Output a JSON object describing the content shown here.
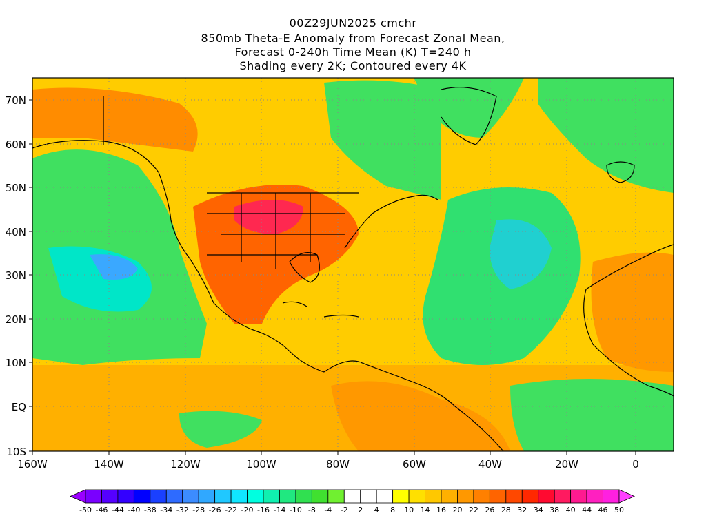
{
  "titles": [
    "00Z29JUN2025 cmchr",
    "850mb Theta-E Anomaly from Forecast Zonal Mean,",
    "Forecast 0-240h Time Mean (K) T=240 h",
    "Shading every 2K; Contoured every 4K"
  ],
  "lat_labels": [
    "70N",
    "60N",
    "50N",
    "40N",
    "30N",
    "20N",
    "10N",
    "EQ",
    "10S"
  ],
  "lon_labels": [
    "160W",
    "140W",
    "120W",
    "100W",
    "80W",
    "60W",
    "40W",
    "20W",
    "0"
  ],
  "colorbar_labels": [
    "-50",
    "-46",
    "-44",
    "-40",
    "-38",
    "-34",
    "-32",
    "-28",
    "-26",
    "-22",
    "-20",
    "-16",
    "-14",
    "-10",
    "-8",
    "-4",
    "-2",
    "2",
    "4",
    "8",
    "10",
    "14",
    "16",
    "20",
    "22",
    "26",
    "28",
    "32",
    "34",
    "38",
    "40",
    "44",
    "46",
    "50"
  ],
  "colorbar_colors": [
    "#9a00ff",
    "#7a00ff",
    "#5500ff",
    "#3300ff",
    "#0000ff",
    "#1a40ff",
    "#2e6bff",
    "#3c8cff",
    "#30a8ff",
    "#20c8ff",
    "#10e6ff",
    "#00ffe0",
    "#10f0b0",
    "#20e880",
    "#30e050",
    "#40e030",
    "#70f030",
    "#ffffff",
    "#ffffff",
    "#ffffff",
    "#ffff00",
    "#ffe000",
    "#ffc800",
    "#ffb000",
    "#ff9800",
    "#ff8000",
    "#ff6400",
    "#ff4800",
    "#ff2800",
    "#ff0a30",
    "#ff1a60",
    "#ff1a90",
    "#ff20c0",
    "#ff20e0",
    "#ff40ff"
  ]
}
